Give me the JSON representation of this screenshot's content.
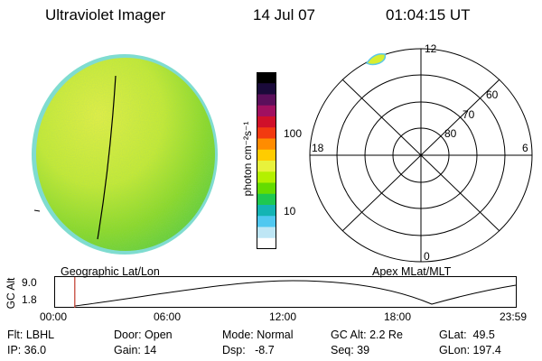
{
  "header": {
    "title": "Ultraviolet Imager",
    "date": "14 Jul 07",
    "time": "01:04:15 UT"
  },
  "colorbar": {
    "unit_label": "photon cm⁻²s⁻¹",
    "ticks": [
      "100",
      "10"
    ],
    "colors": [
      "#000000",
      "#1a0a3a",
      "#5b0f5b",
      "#a01060",
      "#d0102a",
      "#f23a10",
      "#ff8c00",
      "#ffcc00",
      "#e8f23c",
      "#b4f000",
      "#64dc00",
      "#1ec850",
      "#14b4b4",
      "#50c8f0",
      "#bee6f5",
      "#ffffff"
    ]
  },
  "polar": {
    "mlt_labels": [
      "12",
      "18",
      "6",
      "0"
    ],
    "lat_labels": [
      "60",
      "70",
      "80"
    ]
  },
  "orbit": {
    "left_label": "Geographic Lat/Lon",
    "right_label": "Apex MLat/MLT",
    "axis_title": "GC Alt",
    "y_ticks": [
      "9.0",
      "1.8"
    ],
    "x_ticks": [
      "00:00",
      "06:00",
      "12:00",
      "18:00",
      "23:59"
    ],
    "marker_time_hours": 1.07
  },
  "status": {
    "flt": "Flt: LBHL",
    "ip": "IP: 36.0",
    "door": "Door: Open",
    "gain": "Gain: 14",
    "mode": "Mode: Normal",
    "dsp": "Dsp:   -8.7",
    "gc_alt": "GC Alt: 2.2 Re",
    "seq": "Seq: 39",
    "glat": "GLat:  49.5",
    "glon": "GLon: 197.4"
  }
}
